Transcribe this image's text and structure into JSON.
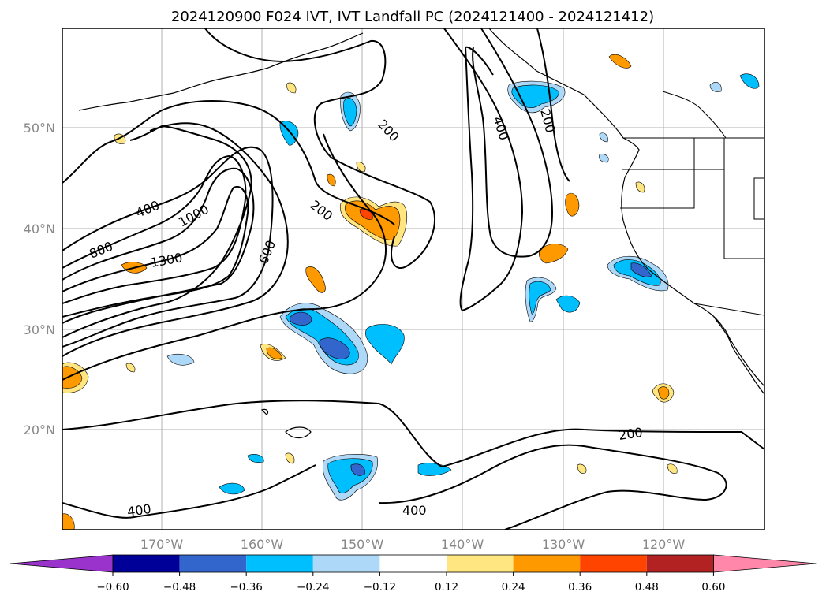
{
  "title": "2024120900 F024 IVT, IVT Landfall PC (2024121400 - 2024121412)",
  "lat_labels": [
    "50°N",
    "40°N",
    "30°N",
    "20°N"
  ],
  "lon_labels": [
    "170°W",
    "160°W",
    "150°W",
    "140°W",
    "130°W",
    "120°W"
  ],
  "contour_labels": [
    "200",
    "200",
    "200",
    "200",
    "400",
    "400",
    "400",
    "400",
    "600",
    "800",
    "1000",
    "1300"
  ],
  "colorbar": {
    "colors": [
      "#9933cc",
      "#000099",
      "#3366cc",
      "#00bfff",
      "#add8f7",
      "#ffffff",
      "#ffe680",
      "#ff9900",
      "#ff4400",
      "#b22222",
      "#ff88aa"
    ],
    "ticks": [
      "−0.60",
      "−0.48",
      "−0.36",
      "−0.24",
      "−0.12",
      "0.12",
      "0.24",
      "0.36",
      "0.48",
      "0.60"
    ]
  }
}
